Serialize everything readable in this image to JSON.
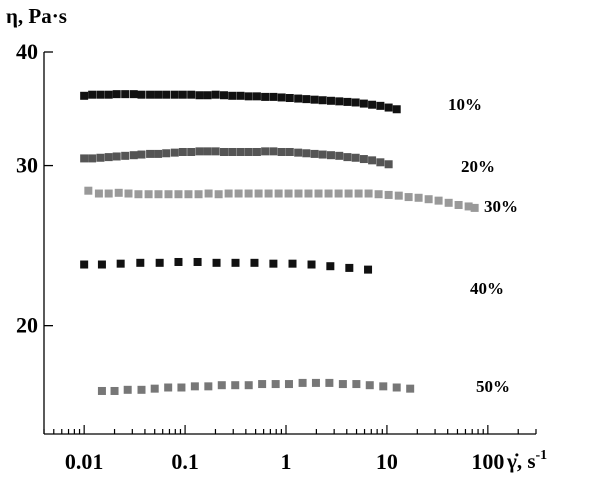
{
  "chart_data": {
    "type": "scatter",
    "title": "",
    "ylabel": "η, Pa·s",
    "xlabel": "γ̇, s",
    "xlabel_superscript": "-1",
    "x_scale": "log",
    "y_scale": "log",
    "xlim": [
      0.004,
      300
    ],
    "ylim": [
      15.2,
      40
    ],
    "x_ticks": [
      {
        "value": 0.01,
        "label": "0.01"
      },
      {
        "value": 0.1,
        "label": "0.1"
      },
      {
        "value": 1,
        "label": "1"
      },
      {
        "value": 10,
        "label": "10"
      },
      {
        "value": 100,
        "label": "100"
      }
    ],
    "y_ticks": [
      {
        "value": 20,
        "label": "20"
      },
      {
        "value": 30,
        "label": "30"
      },
      {
        "value": 40,
        "label": "40"
      }
    ],
    "grid": false,
    "legend": "none",
    "series": [
      {
        "label": "10%",
        "color": "#111111",
        "points": [
          [
            0.01,
            35.8
          ],
          [
            0.012,
            35.9
          ],
          [
            0.0145,
            35.9
          ],
          [
            0.0175,
            35.9
          ],
          [
            0.021,
            35.95
          ],
          [
            0.0255,
            35.95
          ],
          [
            0.031,
            35.95
          ],
          [
            0.037,
            35.9
          ],
          [
            0.045,
            35.9
          ],
          [
            0.054,
            35.9
          ],
          [
            0.065,
            35.9
          ],
          [
            0.079,
            35.9
          ],
          [
            0.095,
            35.9
          ],
          [
            0.115,
            35.9
          ],
          [
            0.139,
            35.85
          ],
          [
            0.167,
            35.85
          ],
          [
            0.201,
            35.9
          ],
          [
            0.243,
            35.85
          ],
          [
            0.293,
            35.8
          ],
          [
            0.354,
            35.8
          ],
          [
            0.427,
            35.75
          ],
          [
            0.515,
            35.75
          ],
          [
            0.621,
            35.7
          ],
          [
            0.75,
            35.7
          ],
          [
            0.905,
            35.65
          ],
          [
            1.09,
            35.6
          ],
          [
            1.32,
            35.55
          ],
          [
            1.59,
            35.5
          ],
          [
            1.92,
            35.45
          ],
          [
            2.31,
            35.4
          ],
          [
            2.79,
            35.35
          ],
          [
            3.37,
            35.3
          ],
          [
            4.06,
            35.25
          ],
          [
            4.9,
            35.2
          ],
          [
            5.91,
            35.1
          ],
          [
            7.13,
            35.0
          ],
          [
            8.61,
            34.9
          ],
          [
            10.4,
            34.75
          ],
          [
            12.5,
            34.6
          ]
        ]
      },
      {
        "label": "20%",
        "color": "#555555",
        "points": [
          [
            0.01,
            30.55
          ],
          [
            0.012,
            30.55
          ],
          [
            0.0145,
            30.6
          ],
          [
            0.0175,
            30.65
          ],
          [
            0.021,
            30.7
          ],
          [
            0.0255,
            30.75
          ],
          [
            0.031,
            30.8
          ],
          [
            0.037,
            30.85
          ],
          [
            0.045,
            30.9
          ],
          [
            0.054,
            30.9
          ],
          [
            0.065,
            30.95
          ],
          [
            0.079,
            31.0
          ],
          [
            0.095,
            31.05
          ],
          [
            0.115,
            31.05
          ],
          [
            0.139,
            31.1
          ],
          [
            0.167,
            31.1
          ],
          [
            0.201,
            31.1
          ],
          [
            0.243,
            31.05
          ],
          [
            0.293,
            31.05
          ],
          [
            0.354,
            31.05
          ],
          [
            0.427,
            31.05
          ],
          [
            0.515,
            31.05
          ],
          [
            0.621,
            31.1
          ],
          [
            0.75,
            31.1
          ],
          [
            0.905,
            31.05
          ],
          [
            1.09,
            31.05
          ],
          [
            1.32,
            31.0
          ],
          [
            1.59,
            30.95
          ],
          [
            1.92,
            30.9
          ],
          [
            2.31,
            30.85
          ],
          [
            2.79,
            30.8
          ],
          [
            3.37,
            30.75
          ],
          [
            4.06,
            30.65
          ],
          [
            4.9,
            30.6
          ],
          [
            5.91,
            30.5
          ],
          [
            7.13,
            30.4
          ],
          [
            8.61,
            30.25
          ],
          [
            10.4,
            30.1
          ]
        ]
      },
      {
        "label": "30%",
        "color": "#999999",
        "points": [
          [
            0.011,
            28.15
          ],
          [
            0.014,
            27.95
          ],
          [
            0.0175,
            27.95
          ],
          [
            0.022,
            28.0
          ],
          [
            0.0275,
            27.95
          ],
          [
            0.0345,
            27.9
          ],
          [
            0.0435,
            27.9
          ],
          [
            0.0545,
            27.9
          ],
          [
            0.0685,
            27.9
          ],
          [
            0.086,
            27.9
          ],
          [
            0.108,
            27.9
          ],
          [
            0.136,
            27.9
          ],
          [
            0.171,
            27.95
          ],
          [
            0.215,
            27.9
          ],
          [
            0.27,
            27.95
          ],
          [
            0.339,
            27.95
          ],
          [
            0.426,
            27.95
          ],
          [
            0.535,
            27.95
          ],
          [
            0.672,
            27.95
          ],
          [
            0.845,
            27.95
          ],
          [
            1.06,
            27.95
          ],
          [
            1.33,
            27.95
          ],
          [
            1.67,
            27.95
          ],
          [
            2.1,
            27.95
          ],
          [
            2.64,
            27.95
          ],
          [
            3.32,
            27.95
          ],
          [
            4.17,
            27.95
          ],
          [
            5.24,
            27.95
          ],
          [
            6.58,
            27.95
          ],
          [
            8.27,
            27.9
          ],
          [
            10.4,
            27.85
          ],
          [
            13.1,
            27.8
          ],
          [
            16.4,
            27.7
          ],
          [
            20.6,
            27.65
          ],
          [
            25.9,
            27.55
          ],
          [
            32.5,
            27.45
          ],
          [
            40.9,
            27.3
          ],
          [
            51.3,
            27.15
          ],
          [
            64.5,
            27.05
          ],
          [
            74.0,
            26.95
          ]
        ]
      },
      {
        "label": "40%",
        "color": "#111111",
        "points": [
          [
            0.01,
            23.35
          ],
          [
            0.015,
            23.35
          ],
          [
            0.023,
            23.4
          ],
          [
            0.036,
            23.45
          ],
          [
            0.056,
            23.45
          ],
          [
            0.086,
            23.5
          ],
          [
            0.133,
            23.5
          ],
          [
            0.205,
            23.45
          ],
          [
            0.316,
            23.45
          ],
          [
            0.487,
            23.45
          ],
          [
            0.75,
            23.4
          ],
          [
            1.16,
            23.4
          ],
          [
            1.79,
            23.35
          ],
          [
            2.75,
            23.25
          ],
          [
            4.24,
            23.15
          ],
          [
            6.5,
            23.05
          ]
        ]
      },
      {
        "label": "50%",
        "color": "#777777",
        "points": [
          [
            0.015,
            16.95
          ],
          [
            0.02,
            16.95
          ],
          [
            0.027,
            17.0
          ],
          [
            0.037,
            17.0
          ],
          [
            0.05,
            17.05
          ],
          [
            0.068,
            17.1
          ],
          [
            0.092,
            17.1
          ],
          [
            0.125,
            17.15
          ],
          [
            0.17,
            17.15
          ],
          [
            0.231,
            17.2
          ],
          [
            0.314,
            17.2
          ],
          [
            0.427,
            17.2
          ],
          [
            0.58,
            17.25
          ],
          [
            0.79,
            17.25
          ],
          [
            1.07,
            17.25
          ],
          [
            1.46,
            17.3
          ],
          [
            1.98,
            17.3
          ],
          [
            2.69,
            17.3
          ],
          [
            3.66,
            17.25
          ],
          [
            4.98,
            17.25
          ],
          [
            6.76,
            17.2
          ],
          [
            9.2,
            17.15
          ],
          [
            12.5,
            17.1
          ],
          [
            17.0,
            17.05
          ]
        ]
      }
    ]
  }
}
